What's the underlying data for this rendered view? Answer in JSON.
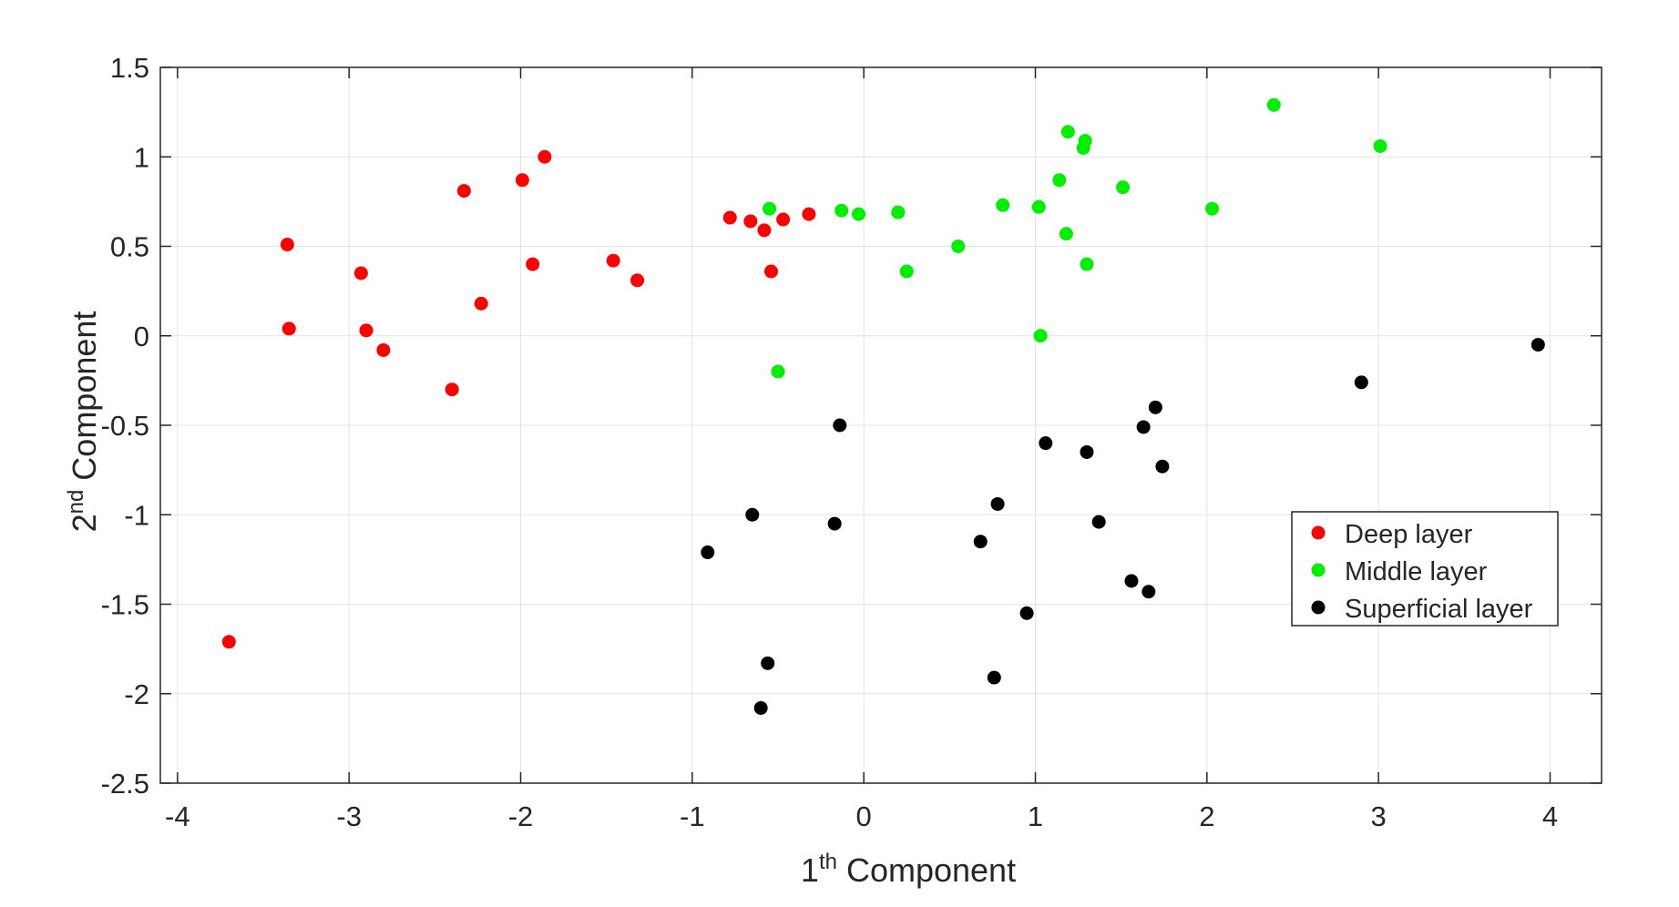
{
  "chart_data": {
    "type": "scatter",
    "xlabel": "1th Component",
    "ylabel": "2nd Component",
    "xlim": [
      -4.1,
      4.3
    ],
    "ylim": [
      -2.5,
      1.5
    ],
    "x_ticks": [
      -4,
      -3,
      -2,
      -1,
      0,
      1,
      2,
      3,
      4
    ],
    "y_ticks": [
      1.5,
      1,
      0.5,
      0,
      -0.5,
      -1,
      -1.5,
      -2,
      -2.5
    ],
    "grid": true,
    "legend_position": "lower-right",
    "series": [
      {
        "name": "Deep layer",
        "color": "#ff0000",
        "points": [
          [
            -3.7,
            -1.71
          ],
          [
            -3.36,
            0.51
          ],
          [
            -3.35,
            0.04
          ],
          [
            -2.93,
            0.35
          ],
          [
            -2.9,
            0.03
          ],
          [
            -2.8,
            -0.08
          ],
          [
            -2.4,
            -0.3
          ],
          [
            -2.33,
            0.81
          ],
          [
            -2.23,
            0.18
          ],
          [
            -1.99,
            0.87
          ],
          [
            -1.93,
            0.4
          ],
          [
            -1.86,
            1.0
          ],
          [
            -1.46,
            0.42
          ],
          [
            -1.32,
            0.31
          ],
          [
            -0.78,
            0.66
          ],
          [
            -0.66,
            0.64
          ],
          [
            -0.58,
            0.59
          ],
          [
            -0.47,
            0.65
          ],
          [
            -0.54,
            0.36
          ],
          [
            -0.32,
            0.68
          ]
        ]
      },
      {
        "name": "Middle layer",
        "color": "#00ee00",
        "points": [
          [
            -0.55,
            0.71
          ],
          [
            -0.5,
            -0.2
          ],
          [
            -0.13,
            0.7
          ],
          [
            -0.03,
            0.68
          ],
          [
            0.2,
            0.69
          ],
          [
            0.25,
            0.36
          ],
          [
            0.55,
            0.5
          ],
          [
            0.81,
            0.73
          ],
          [
            1.02,
            0.72
          ],
          [
            1.03,
            0.0
          ],
          [
            1.14,
            0.87
          ],
          [
            1.18,
            0.57
          ],
          [
            1.19,
            1.14
          ],
          [
            1.28,
            1.05
          ],
          [
            1.29,
            1.09
          ],
          [
            1.3,
            0.4
          ],
          [
            1.51,
            0.83
          ],
          [
            2.03,
            0.71
          ],
          [
            2.39,
            1.29
          ],
          [
            3.01,
            1.06
          ]
        ]
      },
      {
        "name": "Superficial layer",
        "color": "#000000",
        "points": [
          [
            -0.91,
            -1.21
          ],
          [
            -0.65,
            -1.0
          ],
          [
            -0.6,
            -2.08
          ],
          [
            -0.56,
            -1.83
          ],
          [
            -0.17,
            -1.05
          ],
          [
            -0.14,
            -0.5
          ],
          [
            0.68,
            -1.15
          ],
          [
            0.76,
            -1.91
          ],
          [
            0.78,
            -0.94
          ],
          [
            0.95,
            -1.55
          ],
          [
            1.06,
            -0.6
          ],
          [
            1.3,
            -0.65
          ],
          [
            1.37,
            -1.04
          ],
          [
            1.56,
            -1.37
          ],
          [
            1.63,
            -0.51
          ],
          [
            1.66,
            -1.43
          ],
          [
            1.7,
            -0.4
          ],
          [
            1.74,
            -0.73
          ],
          [
            2.9,
            -0.26
          ],
          [
            3.93,
            -0.05
          ]
        ]
      }
    ]
  }
}
